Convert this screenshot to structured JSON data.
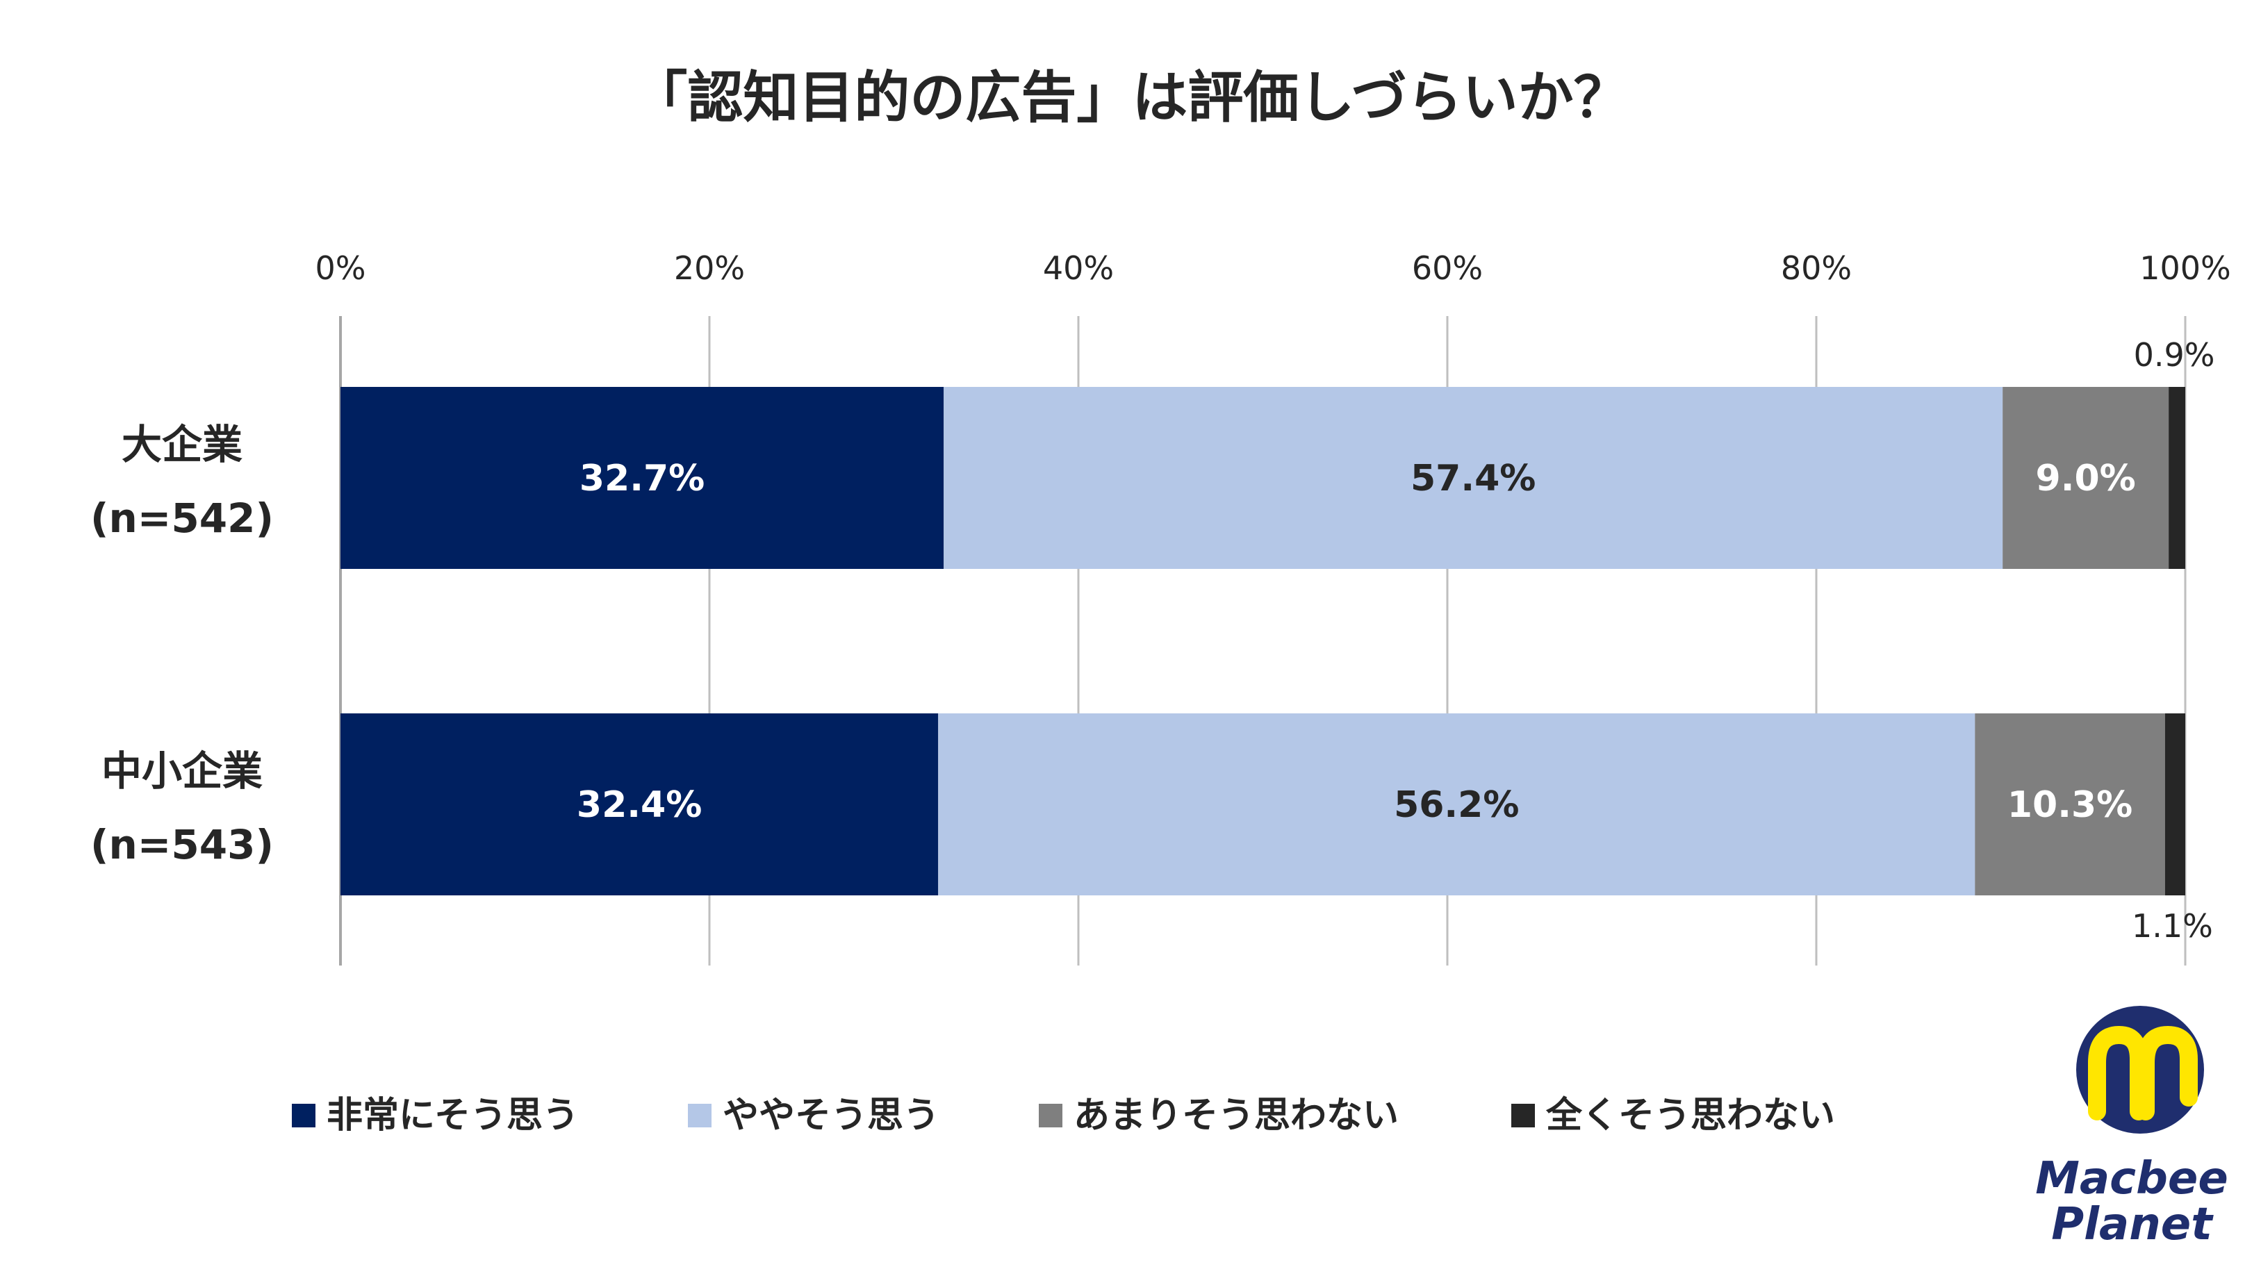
{
  "chart_data": {
    "type": "bar",
    "orientation": "horizontal",
    "stacked": true,
    "title": "「認知目的の広告」は評価しづらいか？",
    "xlim": [
      0,
      100
    ],
    "x_ticks": [
      "0%",
      "20%",
      "40%",
      "60%",
      "80%",
      "100%"
    ],
    "grid": true,
    "legend_position": "bottom",
    "categories": [
      {
        "name": "大企業",
        "n": "(n=542)"
      },
      {
        "name": "中小企業",
        "n": "(n=543)"
      }
    ],
    "series": [
      {
        "name": "非常にそう思う",
        "color": "#002060",
        "label_color": "#ffffff",
        "values": [
          32.7,
          32.4
        ],
        "labels": [
          "32.7%",
          "32.4%"
        ]
      },
      {
        "name": "ややそう思う",
        "color": "#b4c7e7",
        "label_color": "#262626",
        "values": [
          57.4,
          56.2
        ],
        "labels": [
          "57.4%",
          "56.2%"
        ]
      },
      {
        "name": "あまりそう思わない",
        "color": "#7f7f7f",
        "label_color": "#ffffff",
        "values": [
          9.0,
          10.3
        ],
        "labels": [
          "9.0%",
          "10.3%"
        ]
      },
      {
        "name": "全くそう思わない",
        "color": "#262626",
        "label_color": "#262626",
        "values": [
          0.9,
          1.1
        ],
        "labels": [
          "0.9%",
          "1.1%"
        ]
      }
    ]
  },
  "logo": {
    "line1": "Macbee",
    "line2": "Planet",
    "primary_color": "#1f2e6e",
    "accent_color": "#ffe600"
  }
}
